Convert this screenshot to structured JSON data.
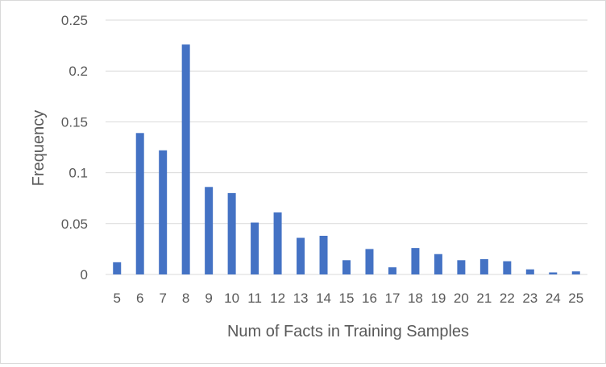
{
  "chart_data": {
    "type": "bar",
    "title": "",
    "xlabel": "Num of Facts in Training Samples",
    "ylabel": "Frequency",
    "categories": [
      "5",
      "6",
      "7",
      "8",
      "9",
      "10",
      "11",
      "12",
      "13",
      "14",
      "15",
      "16",
      "17",
      "18",
      "19",
      "20",
      "21",
      "22",
      "23",
      "24",
      "25"
    ],
    "values": [
      0.012,
      0.139,
      0.122,
      0.226,
      0.086,
      0.08,
      0.051,
      0.061,
      0.036,
      0.038,
      0.014,
      0.025,
      0.007,
      0.026,
      0.02,
      0.014,
      0.015,
      0.013,
      0.005,
      0.002,
      0.003
    ],
    "ylim": [
      0,
      0.25
    ],
    "yticks": [
      "0",
      "0.05",
      "0.1",
      "0.15",
      "0.2",
      "0.25"
    ],
    "ytick_values": [
      0,
      0.05,
      0.1,
      0.15,
      0.2,
      0.25
    ],
    "grid": true,
    "legend": "none",
    "colors": {
      "bar": "#4472c4",
      "grid": "#d9d9d9",
      "text": "#595959",
      "border": "#d9d9d9"
    }
  }
}
